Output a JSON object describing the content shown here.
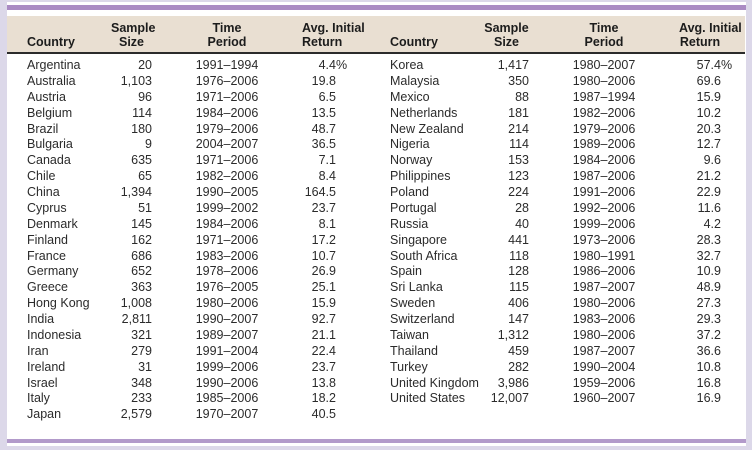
{
  "colors": {
    "page_bg": "#dcd8e9",
    "panel_bg": "#ffffff",
    "rule_purple_top": "#aa8bc3",
    "rule_purple_bottom": "#b29aca",
    "header_bg": "#e9dfd2",
    "header_rule": "#2b2b2b",
    "text": "#2b2b2b"
  },
  "table": {
    "header": {
      "country": "Country",
      "sample_l1": "Sample",
      "sample_l2": "Size",
      "time_l1": "Time",
      "time_l2": "Period",
      "return_l1": "Avg. Initial",
      "return_l2": "Return"
    },
    "rows_left": [
      {
        "country": "Argentina",
        "sample": "20",
        "period": "1991–1994",
        "ret": "4.4%"
      },
      {
        "country": "Australia",
        "sample": "1,103",
        "period": "1976–2006",
        "ret": "19.8"
      },
      {
        "country": "Austria",
        "sample": "96",
        "period": "1971–2006",
        "ret": "6.5"
      },
      {
        "country": "Belgium",
        "sample": "114",
        "period": "1984–2006",
        "ret": "13.5"
      },
      {
        "country": "Brazil",
        "sample": "180",
        "period": "1979–2006",
        "ret": "48.7"
      },
      {
        "country": "Bulgaria",
        "sample": "9",
        "period": "2004–2007",
        "ret": "36.5"
      },
      {
        "country": "Canada",
        "sample": "635",
        "period": "1971–2006",
        "ret": "7.1"
      },
      {
        "country": "Chile",
        "sample": "65",
        "period": "1982–2006",
        "ret": "8.4"
      },
      {
        "country": "China",
        "sample": "1,394",
        "period": "1990–2005",
        "ret": "164.5"
      },
      {
        "country": "Cyprus",
        "sample": "51",
        "period": "1999–2002",
        "ret": "23.7"
      },
      {
        "country": "Denmark",
        "sample": "145",
        "period": "1984–2006",
        "ret": "8.1"
      },
      {
        "country": "Finland",
        "sample": "162",
        "period": "1971–2006",
        "ret": "17.2"
      },
      {
        "country": "France",
        "sample": "686",
        "period": "1983–2006",
        "ret": "10.7"
      },
      {
        "country": "Germany",
        "sample": "652",
        "period": "1978–2006",
        "ret": "26.9"
      },
      {
        "country": "Greece",
        "sample": "363",
        "period": "1976–2005",
        "ret": "25.1"
      },
      {
        "country": "Hong Kong",
        "sample": "1,008",
        "period": "1980–2006",
        "ret": "15.9"
      },
      {
        "country": "India",
        "sample": "2,811",
        "period": "1990–2007",
        "ret": "92.7"
      },
      {
        "country": "Indonesia",
        "sample": "321",
        "period": "1989–2007",
        "ret": "21.1"
      },
      {
        "country": "Iran",
        "sample": "279",
        "period": "1991–2004",
        "ret": "22.4"
      },
      {
        "country": "Ireland",
        "sample": "31",
        "period": "1999–2006",
        "ret": "23.7"
      },
      {
        "country": "Israel",
        "sample": "348",
        "period": "1990–2006",
        "ret": "13.8"
      },
      {
        "country": "Italy",
        "sample": "233",
        "period": "1985–2006",
        "ret": "18.2"
      },
      {
        "country": "Japan",
        "sample": "2,579",
        "period": "1970–2007",
        "ret": "40.5"
      }
    ],
    "rows_right": [
      {
        "country": "Korea",
        "sample": "1,417",
        "period": "1980–2007",
        "ret": "57.4%"
      },
      {
        "country": "Malaysia",
        "sample": "350",
        "period": "1980–2006",
        "ret": "69.6"
      },
      {
        "country": "Mexico",
        "sample": "88",
        "period": "1987–1994",
        "ret": "15.9"
      },
      {
        "country": "Netherlands",
        "sample": "181",
        "period": "1982–2006",
        "ret": "10.2"
      },
      {
        "country": "New Zealand",
        "sample": "214",
        "period": "1979–2006",
        "ret": "20.3"
      },
      {
        "country": "Nigeria",
        "sample": "114",
        "period": "1989–2006",
        "ret": "12.7"
      },
      {
        "country": "Norway",
        "sample": "153",
        "period": "1984–2006",
        "ret": "9.6"
      },
      {
        "country": "Philippines",
        "sample": "123",
        "period": "1987–2006",
        "ret": "21.2"
      },
      {
        "country": "Poland",
        "sample": "224",
        "period": "1991–2006",
        "ret": "22.9"
      },
      {
        "country": "Portugal",
        "sample": "28",
        "period": "1992–2006",
        "ret": "11.6"
      },
      {
        "country": "Russia",
        "sample": "40",
        "period": "1999–2006",
        "ret": "4.2"
      },
      {
        "country": "Singapore",
        "sample": "441",
        "period": "1973–2006",
        "ret": "28.3"
      },
      {
        "country": "South Africa",
        "sample": "118",
        "period": "1980–1991",
        "ret": "32.7"
      },
      {
        "country": "Spain",
        "sample": "128",
        "period": "1986–2006",
        "ret": "10.9"
      },
      {
        "country": "Sri Lanka",
        "sample": "115",
        "period": "1987–2007",
        "ret": "48.9"
      },
      {
        "country": "Sweden",
        "sample": "406",
        "period": "1980–2006",
        "ret": "27.3"
      },
      {
        "country": "Switzerland",
        "sample": "147",
        "period": "1983–2006",
        "ret": "29.3"
      },
      {
        "country": "Taiwan",
        "sample": "1,312",
        "period": "1980–2006",
        "ret": "37.2"
      },
      {
        "country": "Thailand",
        "sample": "459",
        "period": "1987–2007",
        "ret": "36.6"
      },
      {
        "country": "Turkey",
        "sample": "282",
        "period": "1990–2004",
        "ret": "10.8"
      },
      {
        "country": "United Kingdom",
        "sample": "3,986",
        "period": "1959–2006",
        "ret": "16.8"
      },
      {
        "country": "United States",
        "sample": "12,007",
        "period": "1960–2007",
        "ret": "16.9"
      }
    ]
  }
}
